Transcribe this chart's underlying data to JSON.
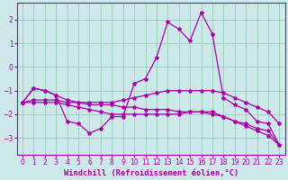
{
  "bg_color": "#cce8e8",
  "grid_color": "#99ccbb",
  "line_color": "#aa00aa",
  "line_width": 0.9,
  "marker": "*",
  "marker_size": 3,
  "xlabel": "Windchill (Refroidissement éolien,°C)",
  "xlabel_fontsize": 6.2,
  "tick_fontsize": 5.5,
  "xlim": [
    -0.5,
    23.5
  ],
  "ylim": [
    -3.7,
    2.7
  ],
  "yticks": [
    -3,
    -2,
    -1,
    0,
    1,
    2
  ],
  "xticks": [
    0,
    1,
    2,
    3,
    4,
    5,
    6,
    7,
    8,
    9,
    10,
    11,
    12,
    13,
    14,
    15,
    16,
    17,
    18,
    19,
    20,
    21,
    22,
    23
  ],
  "y_main": [
    -1.5,
    -0.9,
    -1.0,
    -1.2,
    -2.3,
    -2.4,
    -2.8,
    -2.6,
    -2.1,
    -2.1,
    -0.7,
    -0.5,
    0.4,
    1.9,
    1.6,
    1.1,
    2.3,
    1.4,
    -1.3,
    -1.6,
    -1.8,
    -2.3,
    -2.4,
    -3.3
  ],
  "y_mid1": [
    -1.5,
    -0.9,
    -1.0,
    -1.2,
    -1.4,
    -1.5,
    -1.5,
    -1.5,
    -1.5,
    -1.4,
    -1.3,
    -1.2,
    -1.1,
    -1.0,
    -1.0,
    -1.0,
    -1.0,
    -1.0,
    -1.1,
    -1.3,
    -1.5,
    -1.7,
    -1.9,
    -2.4
  ],
  "y_low1": [
    -1.5,
    -1.4,
    -1.4,
    -1.4,
    -1.5,
    -1.5,
    -1.6,
    -1.6,
    -1.6,
    -1.7,
    -1.7,
    -1.8,
    -1.8,
    -1.8,
    -1.9,
    -1.9,
    -1.9,
    -2.0,
    -2.1,
    -2.3,
    -2.4,
    -2.6,
    -2.7,
    -3.3
  ],
  "y_low2": [
    -1.5,
    -1.5,
    -1.5,
    -1.5,
    -1.6,
    -1.7,
    -1.8,
    -1.9,
    -2.0,
    -2.0,
    -2.0,
    -2.0,
    -2.0,
    -2.0,
    -2.0,
    -1.9,
    -1.9,
    -1.9,
    -2.1,
    -2.3,
    -2.5,
    -2.7,
    -2.9,
    -3.3
  ]
}
